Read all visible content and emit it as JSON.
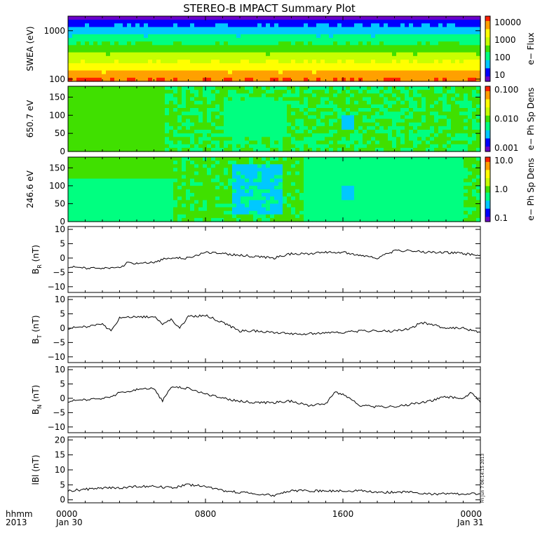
{
  "title": "STEREO-B IMPACT Summary Plot",
  "footer": {
    "hhmm": "hhmm",
    "year": "2013",
    "date_start": "Jan 30",
    "date_end": "Jan 31"
  },
  "timestamp_note": "Fri Jun 7 06:14:15 2013",
  "x_axis": {
    "tick_labels": [
      "0000",
      "0800",
      "1600",
      "0000"
    ],
    "tick_hours": [
      0,
      8,
      16,
      24
    ]
  },
  "colors": {
    "trace": "#000000",
    "colormap": [
      "#6a00c8",
      "#0000ff",
      "#00c8ff",
      "#00ff80",
      "#40e000",
      "#c8ff00",
      "#ffff00",
      "#ffa000",
      "#ff2000"
    ]
  },
  "chart_data": [
    {
      "type": "heatmap",
      "id": "swea",
      "ylabel": "SWEA (eV)",
      "yscale": "log",
      "ylim": [
        90,
        2000
      ],
      "yticks": [
        100,
        1000
      ],
      "ytick_labels": [
        "100",
        "1000"
      ],
      "colorbar": {
        "label": "e− Flux",
        "ticks": [
          "10000",
          "1000",
          "100",
          "10"
        ],
        "scale": "log",
        "range": [
          5,
          20000
        ]
      }
    },
    {
      "type": "heatmap",
      "id": "pad650",
      "ylabel": "650.7 eV",
      "ylim": [
        0,
        180
      ],
      "yticks": [
        0,
        50,
        100,
        150
      ],
      "ytick_labels": [
        "0",
        "50",
        "100",
        "150"
      ],
      "colorbar": {
        "label": "e− Ph Sp Dens",
        "ticks": [
          "0.100",
          "0.010",
          "0.001"
        ],
        "scale": "log",
        "range": [
          0.001,
          0.1
        ]
      }
    },
    {
      "type": "heatmap",
      "id": "pad246",
      "ylabel": "246.6 eV",
      "ylim": [
        0,
        180
      ],
      "yticks": [
        0,
        50,
        100,
        150
      ],
      "ytick_labels": [
        "0",
        "50",
        "100",
        "150"
      ],
      "colorbar": {
        "label": "e− Ph Sp Dens",
        "ticks": [
          "10.0",
          "1.0",
          "0.1"
        ],
        "scale": "log",
        "range": [
          0.1,
          10
        ]
      }
    },
    {
      "type": "line",
      "id": "br",
      "ylabel_main": "B",
      "ylabel_sub": "R",
      "ylabel_unit": " (nT)",
      "ylim": [
        -12,
        11
      ],
      "yticks": [
        -10,
        -5,
        0,
        5,
        10
      ],
      "ytick_labels": [
        "−10",
        "−5",
        "0",
        "5",
        "10"
      ],
      "x_hours": [
        0,
        1,
        2,
        3,
        3.5,
        4,
        5,
        5.5,
        6,
        7,
        8,
        9,
        10,
        11,
        12,
        13,
        14,
        15,
        16,
        17,
        18,
        19,
        20,
        21,
        22,
        23,
        24
      ],
      "values": [
        -3,
        -3.5,
        -3.5,
        -3.5,
        -1.5,
        -2,
        -1.5,
        -0.5,
        0,
        0,
        2,
        1.5,
        1,
        0.5,
        0,
        1.5,
        1.5,
        2,
        2,
        1,
        0,
        2.5,
        2.5,
        2,
        2,
        1.5,
        1
      ]
    },
    {
      "type": "line",
      "id": "bt",
      "ylabel_main": "B",
      "ylabel_sub": "T",
      "ylabel_unit": " (nT)",
      "ylim": [
        -12,
        11
      ],
      "yticks": [
        -10,
        -5,
        0,
        5,
        10
      ],
      "ytick_labels": [
        "−10",
        "−5",
        "0",
        "5",
        "10"
      ],
      "x_hours": [
        0,
        1,
        1.5,
        2,
        2.5,
        3,
        4,
        5,
        5.5,
        6,
        6.5,
        7,
        8,
        9,
        10,
        11,
        12,
        13,
        14,
        15,
        16,
        17,
        18,
        19,
        20,
        20.5,
        21,
        22,
        23,
        24
      ],
      "values": [
        0,
        0.5,
        1,
        1.5,
        -1,
        3.5,
        4,
        4,
        1.5,
        3,
        0,
        4,
        4.5,
        2,
        -1,
        -1,
        -1.5,
        -2,
        -2,
        -1.5,
        -1.5,
        -1,
        -1,
        -1,
        0,
        2,
        1.5,
        0,
        0,
        -1.5
      ]
    },
    {
      "type": "line",
      "id": "bn",
      "ylabel_main": "B",
      "ylabel_sub": "N",
      "ylabel_unit": " (nT)",
      "ylim": [
        -12,
        11
      ],
      "yticks": [
        -10,
        -5,
        0,
        5,
        10
      ],
      "ytick_labels": [
        "−10",
        "−5",
        "0",
        "5",
        "10"
      ],
      "x_hours": [
        0,
        1,
        2,
        2.5,
        3,
        4,
        5,
        5.5,
        6,
        7,
        8,
        9,
        10,
        11,
        12,
        13,
        14,
        15,
        15.5,
        16,
        17,
        18,
        19,
        20,
        21,
        22,
        23,
        23.5,
        24
      ],
      "values": [
        -1,
        -0.5,
        0,
        0.5,
        2,
        3,
        3.5,
        -1,
        4,
        3.5,
        1.5,
        0,
        -1,
        -1.5,
        -1.5,
        -1,
        -2.5,
        -2,
        2,
        1.5,
        -2.5,
        -3,
        -3,
        -2,
        -1,
        0.5,
        0,
        2,
        -1.5
      ]
    },
    {
      "type": "line",
      "id": "bmag",
      "ylabel_main": "lBl",
      "ylabel_sub": "",
      "ylabel_unit": " (nT)",
      "ylim": [
        -1,
        21
      ],
      "yticks": [
        0,
        5,
        10,
        15,
        20
      ],
      "ytick_labels": [
        "0",
        "5",
        "10",
        "15",
        "20"
      ],
      "x_hours": [
        0,
        1,
        2,
        3,
        4,
        5,
        6,
        7,
        8,
        9,
        10,
        11,
        12,
        13,
        14,
        15,
        16,
        17,
        18,
        19,
        20,
        21,
        22,
        23,
        24
      ],
      "values": [
        3,
        3.5,
        4,
        4,
        4.5,
        4.5,
        4,
        5,
        4.5,
        3,
        2.5,
        2,
        1.5,
        3,
        3,
        3,
        3,
        3,
        2.5,
        2.5,
        2.5,
        2,
        2,
        2,
        2
      ]
    }
  ]
}
